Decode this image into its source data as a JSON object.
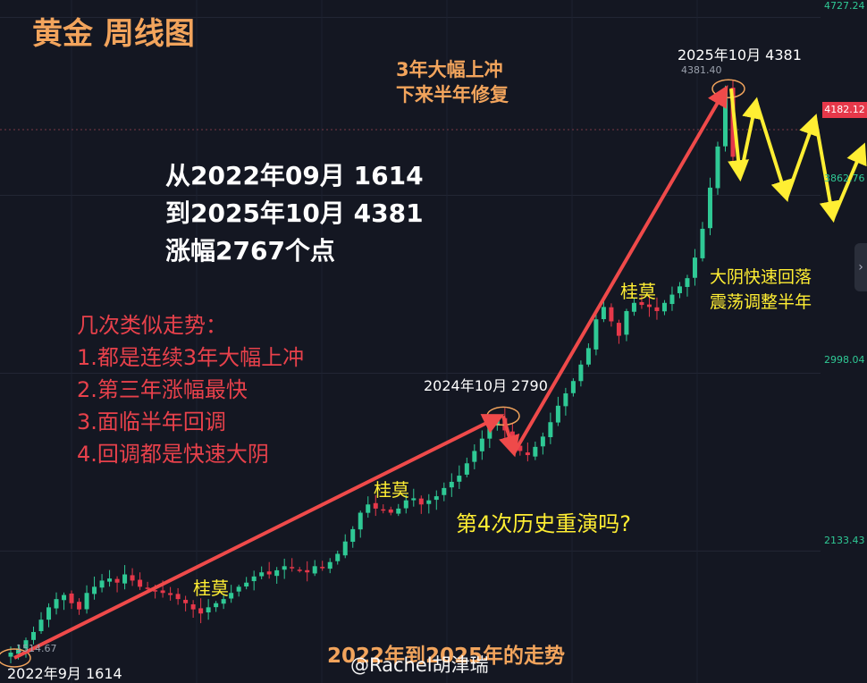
{
  "title": "黄金 周线图",
  "summary_lines": [
    "从2022年09月 1614",
    "到2025年10月 4381",
    "涨幅2767个点"
  ],
  "similar_heading": "几次类似走势：",
  "similar_points": [
    "1.都是连续3年大幅上冲",
    "2.第三年涨幅最快",
    "3.面临半年回调",
    "4.回调都是快速大阴"
  ],
  "orange_note": [
    "3年大幅上冲",
    "下来半年修复"
  ],
  "yellow_note": [
    "大阴快速回落",
    "震荡调整半年"
  ],
  "question": "第4次历史重演吗?",
  "guimo_label": "桂莫",
  "label_start": "2022年9月 1614",
  "label_mid": "2024年10月 2790",
  "label_peak": "2025年10月 4381",
  "price_low": "1514.67",
  "price_high": "4381.40",
  "bottom_title": "2022年到2025年的走势",
  "watermark": "@Rachel胡津瑞",
  "current_price": "4182.12",
  "y_ticks": [
    "4727.24",
    "3862.76",
    "2998.04",
    "2133.43"
  ],
  "colors": {
    "background": "#141722",
    "up_candle": "#2fc995",
    "down_candle": "#e6384a",
    "trend_arrow": "#ef4a4a",
    "projection": "#ffee33",
    "highlight": "#f2a45c"
  },
  "chart_data": {
    "type": "candlestick",
    "title": "黄金 周线图",
    "y_ticks": [
      2133.43,
      2998.04,
      3862.76,
      4727.24
    ],
    "ylim": [
      1440,
      4760
    ],
    "current_price": 4182.12,
    "anchor_points": [
      {
        "label": "2022年9月 1614",
        "value": 1614
      },
      {
        "label": "2024年10月 2790",
        "value": 2790
      },
      {
        "label": "2025年10月 4381",
        "value": 4381
      }
    ],
    "trend_arrows": [
      {
        "from": 1614,
        "to": 2790
      },
      {
        "from": 2790,
        "to": 2610
      },
      {
        "from": 2610,
        "to": 4381
      }
    ],
    "projection_values": [
      4381,
      3950,
      4320,
      3850,
      4240,
      3750,
      4100
    ],
    "weekly_close_path": [
      1640,
      1660,
      1700,
      1740,
      1800,
      1860,
      1900,
      1920,
      1880,
      1850,
      1930,
      1960,
      1990,
      2000,
      1980,
      2020,
      1990,
      1960,
      1950,
      1940,
      1930,
      1920,
      1900,
      1880,
      1850,
      1830,
      1860,
      1880,
      1900,
      1930,
      1960,
      1980,
      2010,
      2030,
      2020,
      2040,
      2060,
      2050,
      2040,
      2030,
      2060,
      2050,
      2080,
      2120,
      2180,
      2240,
      2320,
      2360,
      2340,
      2330,
      2320,
      2340,
      2380,
      2390,
      2360,
      2380,
      2400,
      2440,
      2470,
      2500,
      2560,
      2620,
      2680,
      2740,
      2780,
      2720,
      2650,
      2620,
      2600,
      2640,
      2690,
      2760,
      2840,
      2900,
      2960,
      3040,
      3120,
      3260,
      3320,
      3250,
      3180,
      3300,
      3340,
      3330,
      3320,
      3300,
      3340,
      3380,
      3420,
      3460,
      3560,
      3700,
      3900,
      4100,
      4381,
      4050
    ]
  }
}
